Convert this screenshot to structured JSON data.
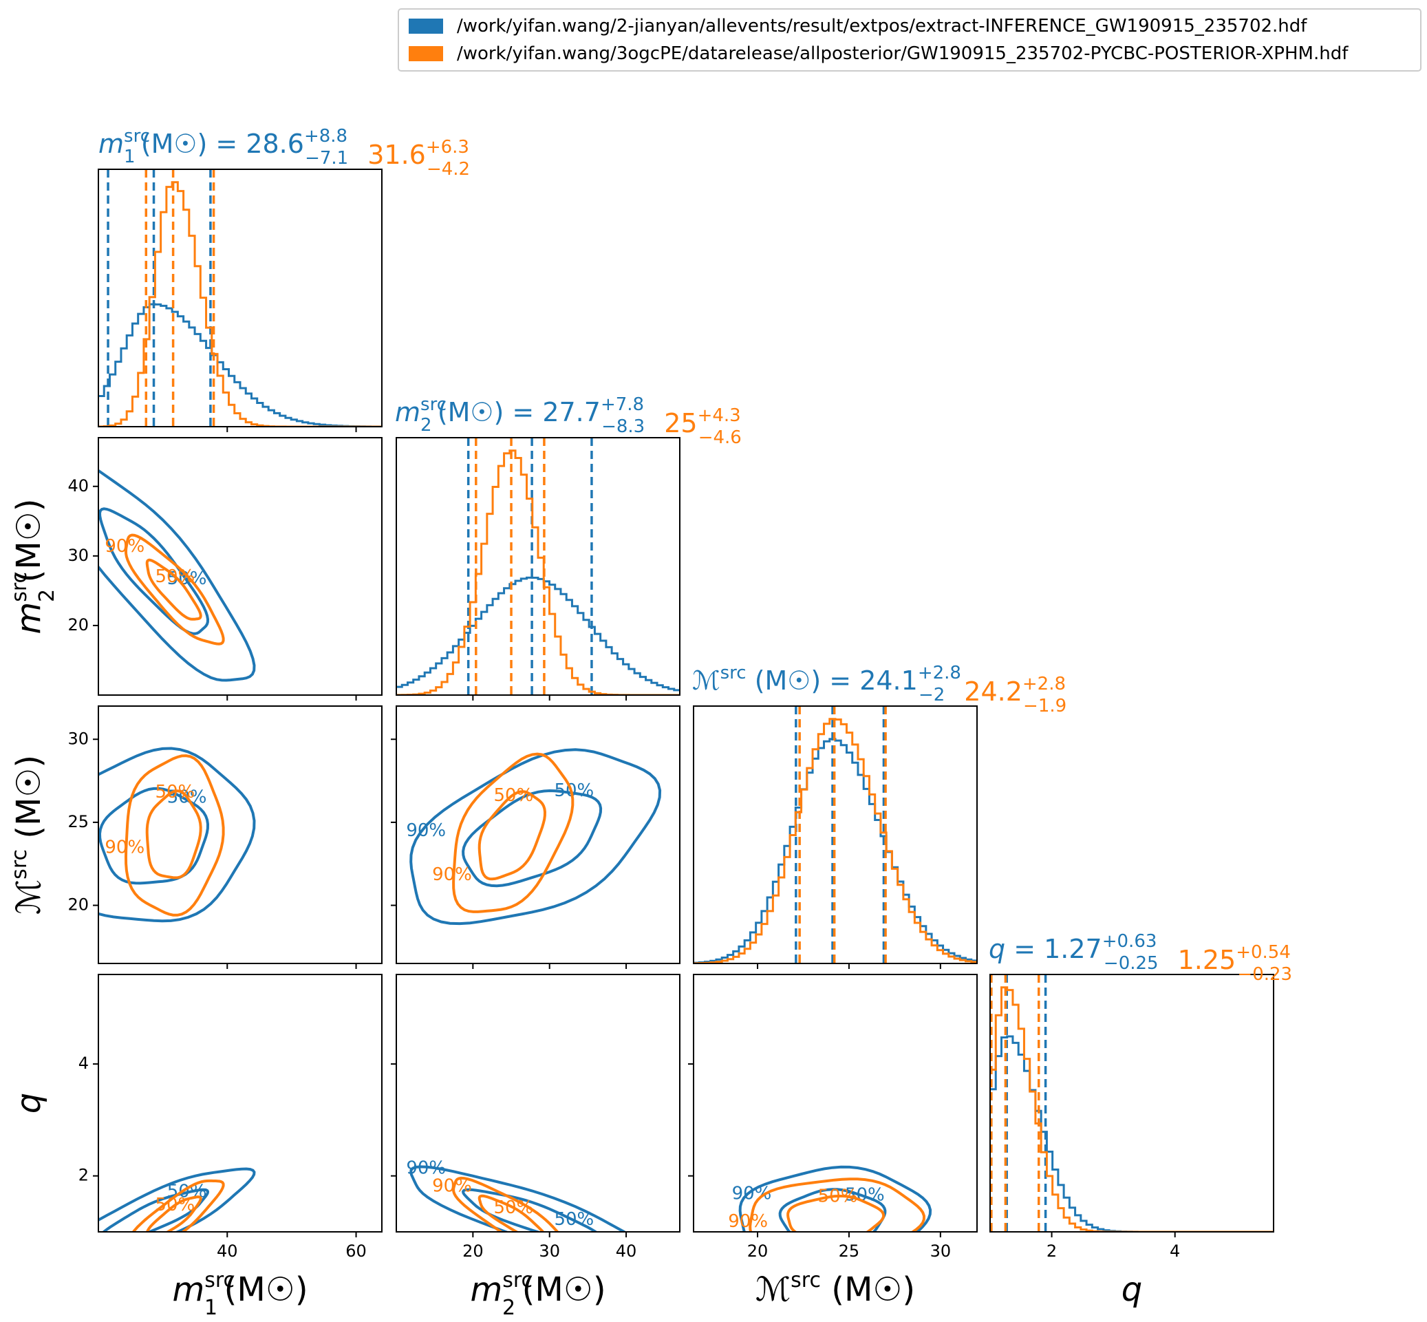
{
  "colors": {
    "series_a": "#1f77b4",
    "series_b": "#ff7f0e"
  },
  "legend": {
    "items": [
      {
        "label": "/work/yifan.wang/2-jianyan/allevents/result/extpos/extract-INFERENCE_GW190915_235702.hdf",
        "color": "#1f77b4"
      },
      {
        "label": "/work/yifan.wang/3ogcPE/datarelease/allposterior/GW190915_235702-PYCBC-POSTERIOR-XPHM.hdf",
        "color": "#ff7f0e"
      }
    ]
  },
  "chart_data": {
    "type": "corner",
    "parameters": [
      {
        "key": "m1",
        "axis_label": "m1src (M☉)",
        "title_label": "m1src (M☉) =",
        "range": [
          20,
          64
        ],
        "ticks": [
          40,
          60
        ],
        "series_a": {
          "median": 28.6,
          "plus": 8.8,
          "minus": 7.1,
          "label": "28.6",
          "plus_label": "+8.8",
          "minus_label": "−7.1"
        },
        "series_b": {
          "median": 31.6,
          "plus": 6.3,
          "minus": 4.2,
          "label": "31.6",
          "plus_label": "+6.3",
          "minus_label": "−4.2"
        }
      },
      {
        "key": "m2",
        "axis_label": "m2src (M☉)",
        "title_label": "m2src (M☉) =",
        "range": [
          10,
          47
        ],
        "ticks": [
          20,
          30,
          40
        ],
        "series_a": {
          "median": 27.7,
          "plus": 7.8,
          "minus": 8.3,
          "label": "27.7",
          "plus_label": "+7.8",
          "minus_label": "−8.3"
        },
        "series_b": {
          "median": 25,
          "plus": 4.3,
          "minus": 4.6,
          "label": "25",
          "plus_label": "+4.3",
          "minus_label": "−4.6"
        }
      },
      {
        "key": "mc",
        "axis_label": "ℳsrc (M☉)",
        "title_label": "ℳsrc (M☉) =",
        "range": [
          16.5,
          32
        ],
        "ticks": [
          20,
          25,
          30
        ],
        "series_a": {
          "median": 24.1,
          "plus": 2.8,
          "minus": 2,
          "label": "24.1",
          "plus_label": "+2.8",
          "minus_label": "−2"
        },
        "series_b": {
          "median": 24.2,
          "plus": 2.8,
          "minus": 1.9,
          "label": "24.2",
          "plus_label": "+2.8",
          "minus_label": "−1.9"
        }
      },
      {
        "key": "q",
        "axis_label": "q",
        "title_label": "q =",
        "range": [
          1,
          5.6
        ],
        "ticks": [
          2,
          4
        ],
        "series_a": {
          "median": 1.27,
          "plus": 0.63,
          "minus": 0.25,
          "label": "1.27",
          "plus_label": "+0.63",
          "minus_label": "−0.25"
        },
        "series_b": {
          "median": 1.25,
          "plus": 0.54,
          "minus": 0.23,
          "label": "1.25",
          "plus_label": "+0.54",
          "minus_label": "−0.23"
        }
      }
    ],
    "series": [
      {
        "name": "/work/yifan.wang/2-jianyan/allevents/result/extpos/extract-INFERENCE_GW190915_235702.hdf",
        "color": "#1f77b4",
        "sd": [
          7.0,
          7.5,
          2.4,
          0.4
        ],
        "skew": [
          1,
          0,
          0.3,
          1
        ]
      },
      {
        "name": "/work/yifan.wang/3ogcPE/datarelease/allposterior/GW190915_235702-PYCBC-POSTERIOR-XPHM.hdf",
        "color": "#ff7f0e",
        "sd": [
          3.5,
          3.6,
          2.2,
          0.32
        ],
        "skew": [
          0.6,
          0,
          0.3,
          1
        ]
      }
    ],
    "correlations": {
      "m1-m2": -0.85,
      "m1-mc": 0.1,
      "m2-mc": 0.45,
      "m1-q": 0.85,
      "m2-q": -0.85,
      "mc-q": 0.05
    },
    "contour_labels": [
      "50%",
      "90%"
    ],
    "grid": false
  }
}
